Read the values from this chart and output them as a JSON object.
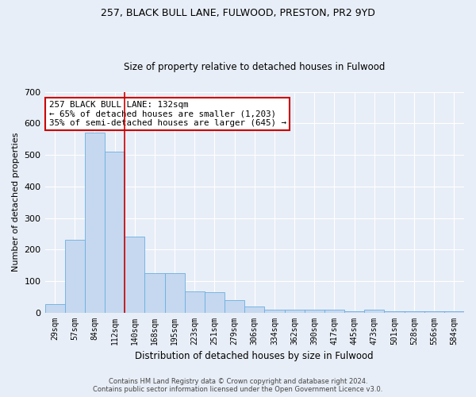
{
  "title1": "257, BLACK BULL LANE, FULWOOD, PRESTON, PR2 9YD",
  "title2": "Size of property relative to detached houses in Fulwood",
  "xlabel": "Distribution of detached houses by size in Fulwood",
  "ylabel": "Number of detached properties",
  "categories": [
    "29sqm",
    "57sqm",
    "84sqm",
    "112sqm",
    "140sqm",
    "168sqm",
    "195sqm",
    "223sqm",
    "251sqm",
    "279sqm",
    "306sqm",
    "334sqm",
    "362sqm",
    "390sqm",
    "417sqm",
    "445sqm",
    "473sqm",
    "501sqm",
    "528sqm",
    "556sqm",
    "584sqm"
  ],
  "values": [
    27,
    230,
    570,
    510,
    240,
    125,
    125,
    68,
    65,
    40,
    18,
    10,
    10,
    10,
    8,
    4,
    8,
    4,
    4,
    5,
    4
  ],
  "bar_color": "#c5d8f0",
  "bar_edge_color": "#6aaee0",
  "vline_color": "#cc0000",
  "annotation_text": "257 BLACK BULL LANE: 132sqm\n← 65% of detached houses are smaller (1,203)\n35% of semi-detached houses are larger (645) →",
  "annotation_box_facecolor": "white",
  "annotation_box_edgecolor": "#cc0000",
  "ylim": [
    0,
    700
  ],
  "yticks": [
    0,
    100,
    200,
    300,
    400,
    500,
    600,
    700
  ],
  "background_color": "#e8eef7",
  "grid_color": "#ffffff",
  "footer_text": "Contains HM Land Registry data © Crown copyright and database right 2024.\nContains public sector information licensed under the Open Government Licence v3.0."
}
